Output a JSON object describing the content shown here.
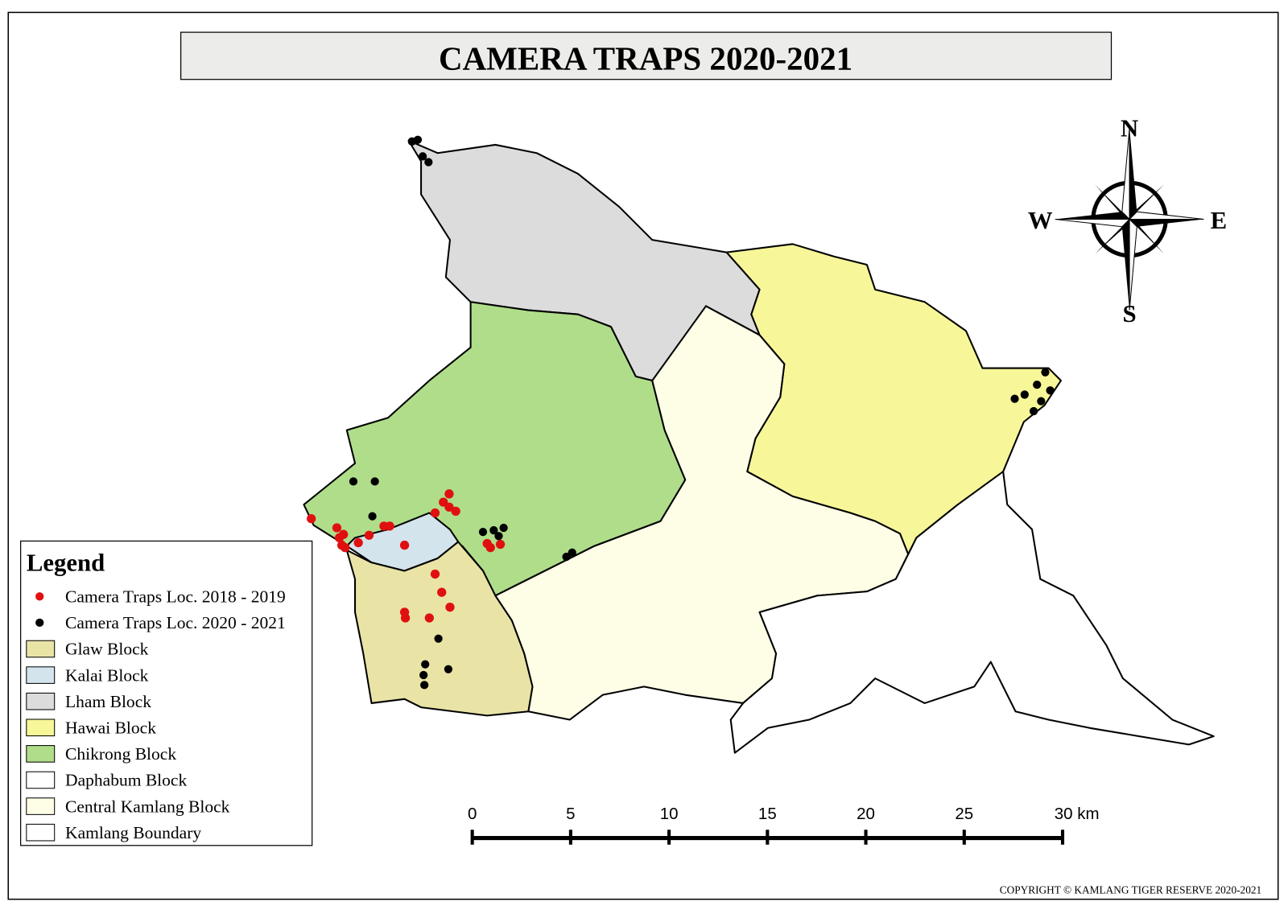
{
  "title": "CAMERA TRAPS 2020-2021",
  "compass": {
    "north": "N",
    "south": "S",
    "west": "W",
    "east": "E"
  },
  "legend": {
    "title": "Legend",
    "items": [
      {
        "label": "Camera Traps Loc. 2018 - 2019",
        "color": "#e01010"
      },
      {
        "label": "Camera Traps Loc. 2020 - 2021",
        "color": "#000000"
      },
      {
        "label": "Glaw Block",
        "color": "#e9e4a6"
      },
      {
        "label": "Kalai Block",
        "color": "#d3e4ec"
      },
      {
        "label": "Lham Block",
        "color": "#dcdcdc"
      },
      {
        "label": "Hawai Block",
        "color": "#f7f79a"
      },
      {
        "label": "Chikrong Block",
        "color": "#b0dd8a"
      },
      {
        "label": "Daphabum Block",
        "color": "#ffffff"
      },
      {
        "label": "Central Kamlang Block",
        "color": "#fefde6"
      },
      {
        "label": "Kamlang Boundary",
        "color": "#ffffff"
      }
    ]
  },
  "scale_bar": {
    "labels": [
      "0",
      "5",
      "10",
      "15",
      "20",
      "25",
      "30 km"
    ]
  },
  "copyright": "COPYRIGHT © KAMLANG TIGER RESERVE 2020-2021"
}
